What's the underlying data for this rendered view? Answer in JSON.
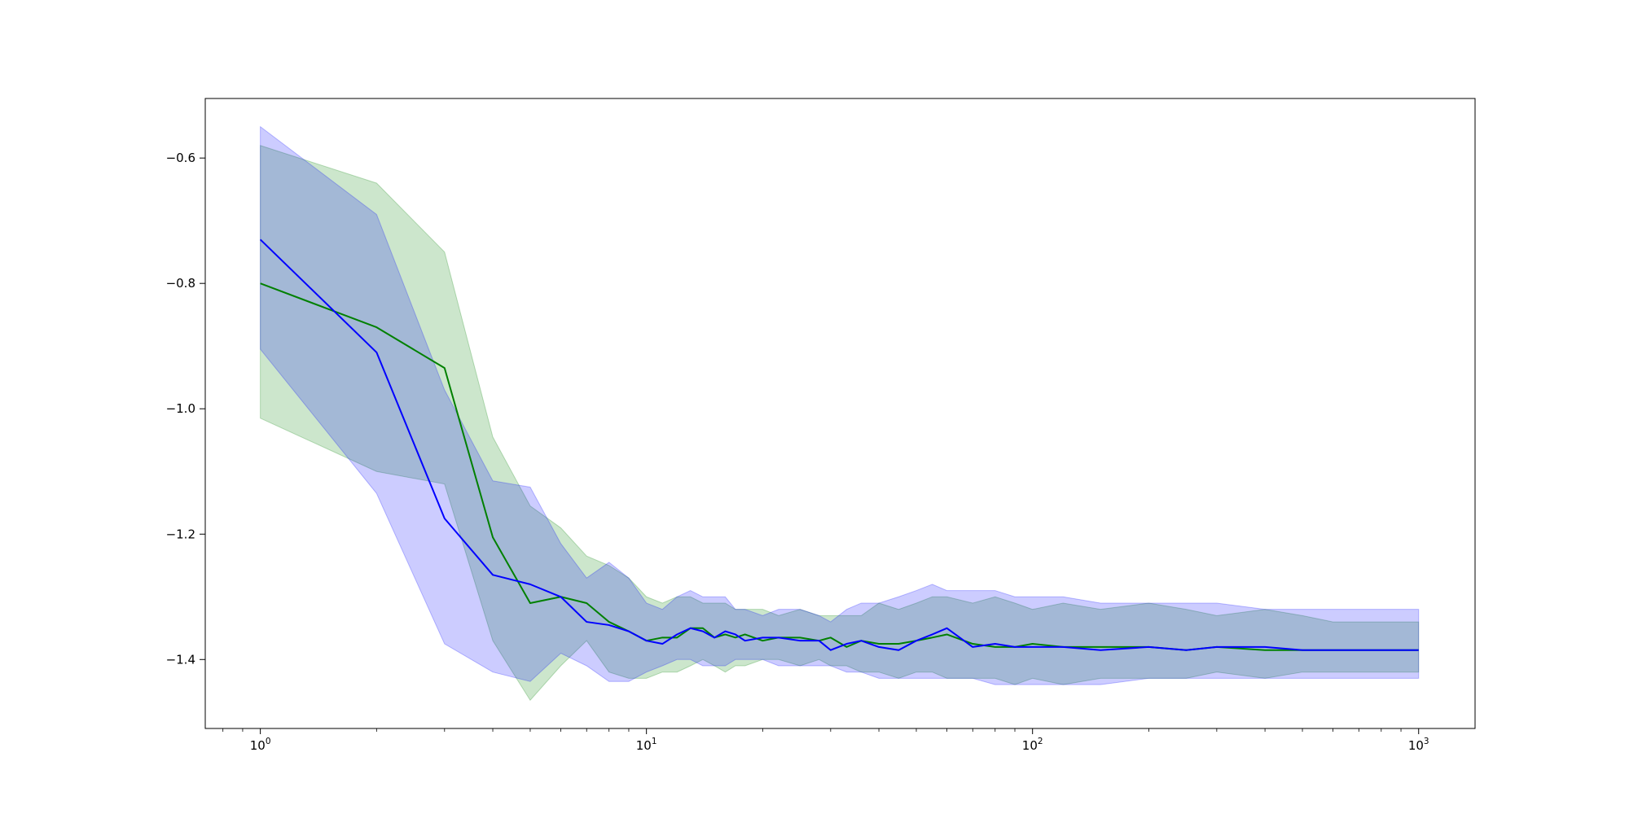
{
  "chart_data": {
    "type": "line",
    "title": "",
    "xlabel": "",
    "ylabel": "",
    "xscale": "log",
    "xlim": [
      0.72,
      1400
    ],
    "ylim": [
      -1.51,
      -0.505
    ],
    "x_major_ticks": [
      {
        "value": 1,
        "base": "10",
        "exp": "0"
      },
      {
        "value": 10,
        "base": "10",
        "exp": "1"
      },
      {
        "value": 100,
        "base": "10",
        "exp": "2"
      },
      {
        "value": 1000,
        "base": "10",
        "exp": "3"
      }
    ],
    "y_ticks": [
      {
        "value": -0.6,
        "label": "−0.6"
      },
      {
        "value": -0.8,
        "label": "−0.8"
      },
      {
        "value": -1.0,
        "label": "−1.0"
      },
      {
        "value": -1.2,
        "label": "−1.2"
      },
      {
        "value": -1.4,
        "label": "−1.4"
      }
    ],
    "grid": false,
    "legend": "none",
    "series": [
      {
        "color": "#008000",
        "band_color": "#008000",
        "band_opacity": 0.2,
        "x": [
          1,
          2,
          3,
          4,
          5,
          6,
          7,
          8,
          9,
          10,
          11,
          12,
          13,
          14,
          15,
          16,
          17,
          18,
          20,
          22,
          25,
          28,
          30,
          33,
          36,
          40,
          45,
          50,
          55,
          60,
          70,
          80,
          90,
          100,
          120,
          150,
          200,
          250,
          300,
          400,
          500,
          600,
          700,
          800,
          900,
          1000
        ],
        "values": [
          -0.8,
          -0.87,
          -0.935,
          -1.205,
          -1.31,
          -1.3,
          -1.31,
          -1.34,
          -1.355,
          -1.37,
          -1.365,
          -1.365,
          -1.35,
          -1.35,
          -1.365,
          -1.36,
          -1.365,
          -1.36,
          -1.37,
          -1.365,
          -1.365,
          -1.37,
          -1.365,
          -1.38,
          -1.37,
          -1.375,
          -1.375,
          -1.37,
          -1.365,
          -1.36,
          -1.375,
          -1.38,
          -1.38,
          -1.375,
          -1.38,
          -1.38,
          -1.38,
          -1.385,
          -1.38,
          -1.385,
          -1.385,
          -1.385,
          -1.385,
          -1.385,
          -1.385,
          -1.385
        ],
        "lower": [
          -1.015,
          -1.1,
          -1.12,
          -1.37,
          -1.465,
          -1.41,
          -1.37,
          -1.42,
          -1.43,
          -1.43,
          -1.42,
          -1.42,
          -1.41,
          -1.4,
          -1.41,
          -1.42,
          -1.41,
          -1.41,
          -1.4,
          -1.4,
          -1.41,
          -1.4,
          -1.41,
          -1.41,
          -1.42,
          -1.42,
          -1.43,
          -1.42,
          -1.42,
          -1.43,
          -1.43,
          -1.43,
          -1.44,
          -1.43,
          -1.44,
          -1.43,
          -1.43,
          -1.43,
          -1.42,
          -1.43,
          -1.42,
          -1.42,
          -1.42,
          -1.42,
          -1.42,
          -1.42
        ],
        "upper": [
          -0.58,
          -0.64,
          -0.75,
          -1.045,
          -1.155,
          -1.19,
          -1.235,
          -1.25,
          -1.27,
          -1.3,
          -1.31,
          -1.3,
          -1.3,
          -1.31,
          -1.31,
          -1.31,
          -1.32,
          -1.32,
          -1.32,
          -1.33,
          -1.32,
          -1.33,
          -1.33,
          -1.33,
          -1.33,
          -1.31,
          -1.32,
          -1.31,
          -1.3,
          -1.3,
          -1.31,
          -1.3,
          -1.31,
          -1.32,
          -1.31,
          -1.32,
          -1.31,
          -1.32,
          -1.33,
          -1.32,
          -1.33,
          -1.34,
          -1.34,
          -1.34,
          -1.34,
          -1.34
        ]
      },
      {
        "color": "#0000ff",
        "band_color": "#0000ff",
        "band_opacity": 0.2,
        "x": [
          1,
          2,
          3,
          4,
          5,
          6,
          7,
          8,
          9,
          10,
          11,
          12,
          13,
          14,
          15,
          16,
          17,
          18,
          20,
          22,
          25,
          28,
          30,
          33,
          36,
          40,
          45,
          50,
          55,
          60,
          70,
          80,
          90,
          100,
          120,
          150,
          200,
          250,
          300,
          400,
          500,
          600,
          700,
          800,
          900,
          1000
        ],
        "values": [
          -0.73,
          -0.91,
          -1.175,
          -1.265,
          -1.28,
          -1.3,
          -1.34,
          -1.345,
          -1.355,
          -1.37,
          -1.375,
          -1.36,
          -1.35,
          -1.355,
          -1.365,
          -1.355,
          -1.36,
          -1.37,
          -1.365,
          -1.365,
          -1.37,
          -1.37,
          -1.385,
          -1.375,
          -1.37,
          -1.38,
          -1.385,
          -1.37,
          -1.36,
          -1.35,
          -1.38,
          -1.375,
          -1.38,
          -1.38,
          -1.38,
          -1.385,
          -1.38,
          -1.385,
          -1.38,
          -1.38,
          -1.385,
          -1.385,
          -1.385,
          -1.385,
          -1.385,
          -1.385
        ],
        "lower": [
          -0.905,
          -1.135,
          -1.375,
          -1.42,
          -1.435,
          -1.39,
          -1.41,
          -1.435,
          -1.435,
          -1.42,
          -1.41,
          -1.4,
          -1.4,
          -1.41,
          -1.41,
          -1.41,
          -1.4,
          -1.4,
          -1.4,
          -1.41,
          -1.41,
          -1.41,
          -1.41,
          -1.42,
          -1.42,
          -1.43,
          -1.43,
          -1.43,
          -1.43,
          -1.43,
          -1.43,
          -1.44,
          -1.44,
          -1.44,
          -1.44,
          -1.44,
          -1.43,
          -1.43,
          -1.43,
          -1.43,
          -1.43,
          -1.43,
          -1.43,
          -1.43,
          -1.43,
          -1.43
        ],
        "upper": [
          -0.55,
          -0.69,
          -0.97,
          -1.115,
          -1.125,
          -1.215,
          -1.27,
          -1.245,
          -1.27,
          -1.31,
          -1.32,
          -1.3,
          -1.29,
          -1.3,
          -1.3,
          -1.3,
          -1.32,
          -1.32,
          -1.33,
          -1.32,
          -1.32,
          -1.33,
          -1.34,
          -1.32,
          -1.31,
          -1.31,
          -1.3,
          -1.29,
          -1.28,
          -1.29,
          -1.29,
          -1.29,
          -1.3,
          -1.3,
          -1.3,
          -1.31,
          -1.31,
          -1.31,
          -1.31,
          -1.32,
          -1.32,
          -1.32,
          -1.32,
          -1.32,
          -1.32,
          -1.32
        ]
      }
    ]
  }
}
